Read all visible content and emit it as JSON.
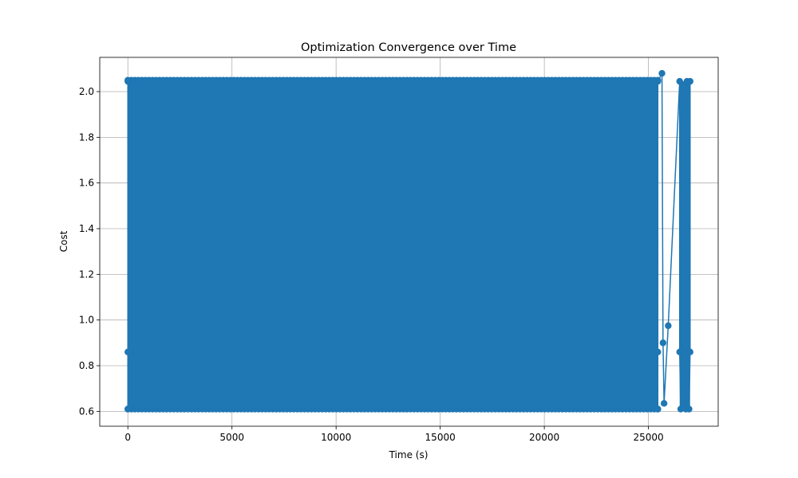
{
  "chart_data": {
    "type": "line",
    "title": "Optimization Convergence over Time",
    "xlabel": "Time (s)",
    "ylabel": "Cost",
    "xlim": [
      -1350,
      28350
    ],
    "ylim": [
      0.535,
      2.15
    ],
    "xticks": [
      0,
      5000,
      10000,
      15000,
      20000,
      25000
    ],
    "yticks": [
      0.6,
      0.8,
      1.0,
      1.2,
      1.4,
      1.6,
      1.8,
      2.0
    ],
    "xtick_labels": [
      "0",
      "5000",
      "10000",
      "15000",
      "20000",
      "25000"
    ],
    "ytick_labels": [
      "0.6",
      "0.8",
      "1.0",
      "1.2",
      "1.4",
      "1.6",
      "1.8",
      "2.0"
    ],
    "grid": true,
    "series": [
      {
        "name": "",
        "color": "#1f77b4",
        "marker": "circle",
        "dense_region": {
          "x_range": [
            0,
            25450
          ],
          "y_range": [
            0.61,
            2.05
          ]
        },
        "points": [
          {
            "x": 0,
            "y": 0.86
          },
          {
            "x": 0,
            "y": 2.045
          },
          {
            "x": 0,
            "y": 0.61
          },
          {
            "x": 25450,
            "y": 0.61
          },
          {
            "x": 25450,
            "y": 0.86
          },
          {
            "x": 25450,
            "y": 2.045
          },
          {
            "x": 25650,
            "y": 2.08
          },
          {
            "x": 25700,
            "y": 0.9
          },
          {
            "x": 25750,
            "y": 0.635
          },
          {
            "x": 25950,
            "y": 0.975
          },
          {
            "x": 26500,
            "y": 2.045
          },
          {
            "x": 26500,
            "y": 0.86
          },
          {
            "x": 26550,
            "y": 0.61
          },
          {
            "x": 26800,
            "y": 0.61
          },
          {
            "x": 26850,
            "y": 2.045
          },
          {
            "x": 26950,
            "y": 0.61
          },
          {
            "x": 27000,
            "y": 0.86
          },
          {
            "x": 27000,
            "y": 2.045
          }
        ]
      }
    ]
  }
}
